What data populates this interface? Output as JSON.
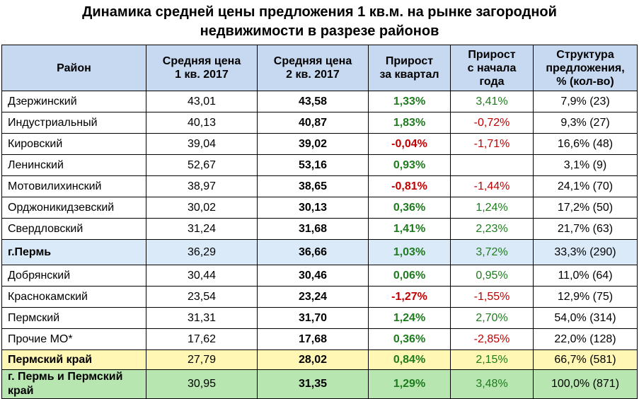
{
  "title_line1": "Динамика средней цены предложения 1 кв.м. на рынке загородной",
  "title_line2": "недвижимости в разрезе районов",
  "headers": {
    "district": "Район",
    "q1_line1": "Средняя цена",
    "q1_line2": "1 кв. 2017",
    "q2_line1": "Средняя цена",
    "q2_line2": "2 кв. 2017",
    "growth_q_line1": "Прирост",
    "growth_q_line2": "за квартал",
    "growth_y_line1": "Прирост",
    "growth_y_line2": "с начала",
    "growth_y_line3": "года",
    "struct_line1": "Структура",
    "struct_line2": "предложения,",
    "struct_line3": "% (кол-во)"
  },
  "rows": [
    {
      "district": "Дзержинский",
      "q1": "43,01",
      "q2": "43,58",
      "growth_q": "1,33%",
      "growth_y": "3,41%",
      "structure": "7,9% (23)"
    },
    {
      "district": "Индустриальный",
      "q1": "40,13",
      "q2": "40,87",
      "growth_q": "1,83%",
      "growth_y": "-0,72%",
      "structure": "9,3% (27)"
    },
    {
      "district": "Кировский",
      "q1": "39,04",
      "q2": "39,02",
      "growth_q": "-0,04%",
      "growth_y": "-1,71%",
      "structure": "16,6% (48)"
    },
    {
      "district": "Ленинский",
      "q1": "52,67",
      "q2": "53,16",
      "growth_q": "0,93%",
      "growth_y": "",
      "structure": "3,1% (9)"
    },
    {
      "district": "Мотовилихинский",
      "q1": "38,97",
      "q2": "38,65",
      "growth_q": "-0,81%",
      "growth_y": "-1,44%",
      "structure": "24,1% (70)"
    },
    {
      "district": "Орджоникидзевский",
      "q1": "30,02",
      "q2": "30,13",
      "growth_q": "0,36%",
      "growth_y": "1,24%",
      "structure": "17,2% (50)"
    },
    {
      "district": "Свердловский",
      "q1": "31,24",
      "q2": "31,68",
      "growth_q": "1,41%",
      "growth_y": "2,23%",
      "structure": "21,7% (63)"
    },
    {
      "district": "г.Пермь",
      "q1": "36,29",
      "q2": "36,66",
      "growth_q": "1,03%",
      "growth_y": "3,72%",
      "structure": "33,3% (290)"
    },
    {
      "district": "Добрянский",
      "q1": "30,44",
      "q2": "30,46",
      "growth_q": "0,06%",
      "growth_y": "0,95%",
      "structure": "11,0% (64)"
    },
    {
      "district": "Краснокамский",
      "q1": "23,54",
      "q2": "23,24",
      "growth_q": "-1,27%",
      "growth_y": "-1,55%",
      "structure": "12,9% (75)"
    },
    {
      "district": "Пермский",
      "q1": "31,31",
      "q2": "31,70",
      "growth_q": "1,24%",
      "growth_y": "2,70%",
      "structure": "54,0% (314)"
    },
    {
      "district": "Прочие МО*",
      "q1": "17,62",
      "q2": "17,68",
      "growth_q": "0,36%",
      "growth_y": "-2,85%",
      "structure": "22,0% (128)"
    },
    {
      "district": "Пермский край",
      "q1": "27,79",
      "q2": "28,02",
      "growth_q": "0,84%",
      "growth_y": "2,15%",
      "structure": "66,7% (581)"
    },
    {
      "district": "г. Пермь и Пермский край",
      "q1": "30,95",
      "q2": "31,35",
      "growth_q": "1,29%",
      "growth_y": "3,48%",
      "structure": "100,0% (871)"
    }
  ],
  "colors": {
    "header_bg": "#c6d9f1",
    "perm_bg": "#dbeaf8",
    "krai_bg": "#fff7b3",
    "total_bg": "#b8e6b0",
    "positive": "#1e7b1e",
    "negative": "#c00000"
  }
}
